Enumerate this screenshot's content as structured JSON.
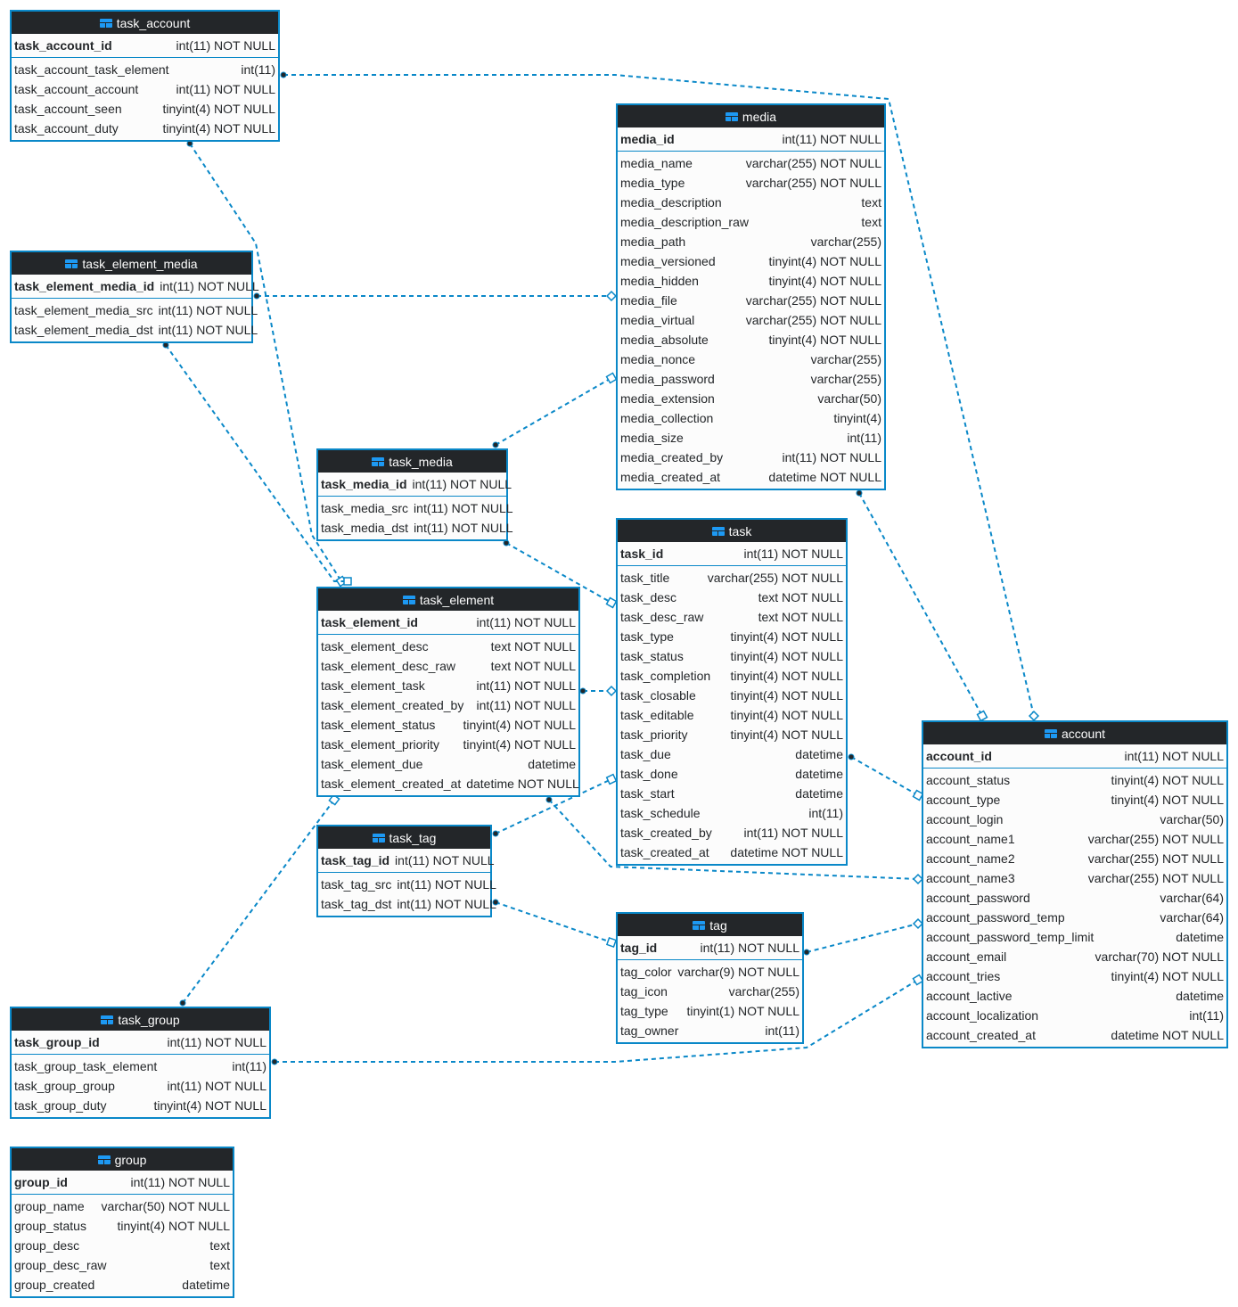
{
  "colors": {
    "border": "#0a88c8",
    "header": "#232629",
    "link": "#0a88c8",
    "icon": "#1d99f3"
  },
  "tables": [
    {
      "name": "task_account",
      "pk": [
        "task_account_id",
        "int(11) NOT NULL"
      ],
      "cols": [
        [
          "task_account_task_element",
          "int(11)"
        ],
        [
          "task_account_account",
          "int(11) NOT NULL"
        ],
        [
          "task_account_seen",
          "tinyint(4) NOT NULL"
        ],
        [
          "task_account_duty",
          "tinyint(4) NOT NULL"
        ]
      ]
    },
    {
      "name": "media",
      "pk": [
        "media_id",
        "int(11) NOT NULL"
      ],
      "cols": [
        [
          "media_name",
          "varchar(255) NOT NULL"
        ],
        [
          "media_type",
          "varchar(255) NOT NULL"
        ],
        [
          "media_description",
          "text"
        ],
        [
          "media_description_raw",
          "text"
        ],
        [
          "media_path",
          "varchar(255)"
        ],
        [
          "media_versioned",
          "tinyint(4) NOT NULL"
        ],
        [
          "media_hidden",
          "tinyint(4) NOT NULL"
        ],
        [
          "media_file",
          "varchar(255) NOT NULL"
        ],
        [
          "media_virtual",
          "varchar(255) NOT NULL"
        ],
        [
          "media_absolute",
          "tinyint(4) NOT NULL"
        ],
        [
          "media_nonce",
          "varchar(255)"
        ],
        [
          "media_password",
          "varchar(255)"
        ],
        [
          "media_extension",
          "varchar(50)"
        ],
        [
          "media_collection",
          "tinyint(4)"
        ],
        [
          "media_size",
          "int(11)"
        ],
        [
          "media_created_by",
          "int(11) NOT NULL"
        ],
        [
          "media_created_at",
          "datetime NOT NULL"
        ]
      ]
    },
    {
      "name": "task_element_media",
      "pk": [
        "task_element_media_id",
        "int(11) NOT NULL"
      ],
      "cols": [
        [
          "task_element_media_src",
          "int(11) NOT NULL"
        ],
        [
          "task_element_media_dst",
          "int(11) NOT NULL"
        ]
      ]
    },
    {
      "name": "task_media",
      "pk": [
        "task_media_id",
        "int(11) NOT NULL"
      ],
      "cols": [
        [
          "task_media_src",
          "int(11) NOT NULL"
        ],
        [
          "task_media_dst",
          "int(11) NOT NULL"
        ]
      ]
    },
    {
      "name": "task",
      "pk": [
        "task_id",
        "int(11) NOT NULL"
      ],
      "cols": [
        [
          "task_title",
          "varchar(255) NOT NULL"
        ],
        [
          "task_desc",
          "text NOT NULL"
        ],
        [
          "task_desc_raw",
          "text NOT NULL"
        ],
        [
          "task_type",
          "tinyint(4) NOT NULL"
        ],
        [
          "task_status",
          "tinyint(4) NOT NULL"
        ],
        [
          "task_completion",
          "tinyint(4) NOT NULL"
        ],
        [
          "task_closable",
          "tinyint(4) NOT NULL"
        ],
        [
          "task_editable",
          "tinyint(4) NOT NULL"
        ],
        [
          "task_priority",
          "tinyint(4) NOT NULL"
        ],
        [
          "task_due",
          "datetime"
        ],
        [
          "task_done",
          "datetime"
        ],
        [
          "task_start",
          "datetime"
        ],
        [
          "task_schedule",
          "int(11)"
        ],
        [
          "task_created_by",
          "int(11) NOT NULL"
        ],
        [
          "task_created_at",
          "datetime NOT NULL"
        ]
      ]
    },
    {
      "name": "task_element",
      "pk": [
        "task_element_id",
        "int(11) NOT NULL"
      ],
      "cols": [
        [
          "task_element_desc",
          "text NOT NULL"
        ],
        [
          "task_element_desc_raw",
          "text NOT NULL"
        ],
        [
          "task_element_task",
          "int(11) NOT NULL"
        ],
        [
          "task_element_created_by",
          "int(11) NOT NULL"
        ],
        [
          "task_element_status",
          "tinyint(4) NOT NULL"
        ],
        [
          "task_element_priority",
          "tinyint(4) NOT NULL"
        ],
        [
          "task_element_due",
          "datetime"
        ],
        [
          "task_element_created_at",
          "datetime NOT NULL"
        ]
      ]
    },
    {
      "name": "account",
      "pk": [
        "account_id",
        "int(11) NOT NULL"
      ],
      "cols": [
        [
          "account_status",
          "tinyint(4) NOT NULL"
        ],
        [
          "account_type",
          "tinyint(4) NOT NULL"
        ],
        [
          "account_login",
          "varchar(50)"
        ],
        [
          "account_name1",
          "varchar(255) NOT NULL"
        ],
        [
          "account_name2",
          "varchar(255) NOT NULL"
        ],
        [
          "account_name3",
          "varchar(255) NOT NULL"
        ],
        [
          "account_password",
          "varchar(64)"
        ],
        [
          "account_password_temp",
          "varchar(64)"
        ],
        [
          "account_password_temp_limit",
          "datetime"
        ],
        [
          "account_email",
          "varchar(70) NOT NULL"
        ],
        [
          "account_tries",
          "tinyint(4) NOT NULL"
        ],
        [
          "account_lactive",
          "datetime"
        ],
        [
          "account_localization",
          "int(11)"
        ],
        [
          "account_created_at",
          "datetime NOT NULL"
        ]
      ]
    },
    {
      "name": "task_tag",
      "pk": [
        "task_tag_id",
        "int(11) NOT NULL"
      ],
      "cols": [
        [
          "task_tag_src",
          "int(11) NOT NULL"
        ],
        [
          "task_tag_dst",
          "int(11) NOT NULL"
        ]
      ]
    },
    {
      "name": "tag",
      "pk": [
        "tag_id",
        "int(11) NOT NULL"
      ],
      "cols": [
        [
          "tag_color",
          "varchar(9) NOT NULL"
        ],
        [
          "tag_icon",
          "varchar(255)"
        ],
        [
          "tag_type",
          "tinyint(1) NOT NULL"
        ],
        [
          "tag_owner",
          "int(11)"
        ]
      ]
    },
    {
      "name": "task_group",
      "pk": [
        "task_group_id",
        "int(11) NOT NULL"
      ],
      "cols": [
        [
          "task_group_task_element",
          "int(11)"
        ],
        [
          "task_group_group",
          "int(11) NOT NULL"
        ],
        [
          "task_group_duty",
          "tinyint(4) NOT NULL"
        ]
      ]
    },
    {
      "name": "group",
      "pk": [
        "group_id",
        "int(11) NOT NULL"
      ],
      "cols": [
        [
          "group_name",
          "varchar(50) NOT NULL"
        ],
        [
          "group_status",
          "tinyint(4) NOT NULL"
        ],
        [
          "group_desc",
          "text"
        ],
        [
          "group_desc_raw",
          "text"
        ],
        [
          "group_created",
          "datetime"
        ]
      ]
    }
  ],
  "relations": [
    {
      "from": "task_account",
      "to": "account",
      "end": "diamond"
    },
    {
      "from": "task_account",
      "to": "task_element",
      "end": "square"
    },
    {
      "from": "task_element_media",
      "to": "task_element",
      "end": "square"
    },
    {
      "from": "task_element_media",
      "to": "media",
      "end": "diamond"
    },
    {
      "from": "task_media",
      "to": "media",
      "end": "square"
    },
    {
      "from": "task_media",
      "to": "task",
      "end": "square"
    },
    {
      "from": "task_element",
      "to": "task",
      "end": "diamond"
    },
    {
      "from": "task_element",
      "to": "account",
      "end": "diamond"
    },
    {
      "from": "task_group",
      "to": "task_element",
      "end": "square"
    },
    {
      "from": "task_tag",
      "to": "task",
      "end": "square"
    },
    {
      "from": "task_tag",
      "to": "tag",
      "end": "square"
    },
    {
      "from": "task",
      "to": "account",
      "end": "square"
    },
    {
      "from": "tag",
      "to": "account",
      "end": "diamond"
    },
    {
      "from": "task_group",
      "to": "account",
      "end": "square"
    },
    {
      "from": "media",
      "to": "account",
      "end": "square"
    }
  ]
}
